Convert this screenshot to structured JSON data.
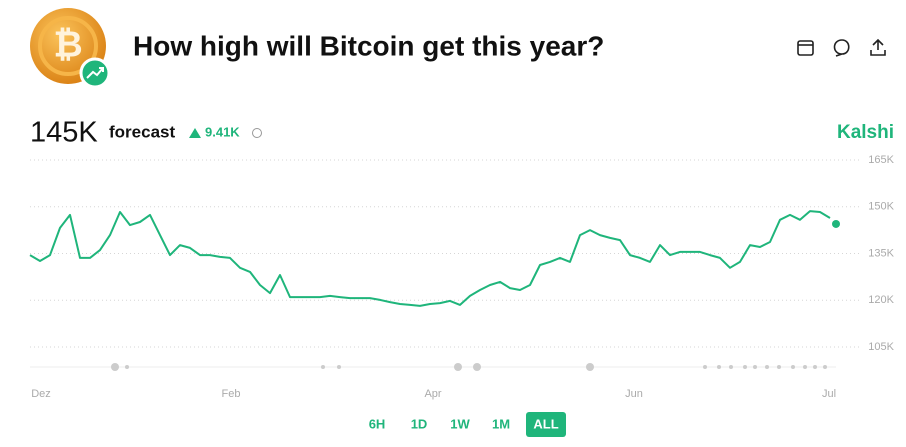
{
  "header": {
    "title": "How high will Bitcoin get this year?"
  },
  "forecast": {
    "value": "145K",
    "label": "forecast",
    "change": "9.41K",
    "source": "Kalshi"
  },
  "chart_data": {
    "type": "line",
    "series": [
      {
        "color": "#1fb57b",
        "values": [
          134500,
          132600,
          134500,
          143200,
          147400,
          133600,
          133600,
          136100,
          140900,
          148300,
          144100,
          145100,
          147400,
          140900,
          134500,
          137700,
          136800,
          134500,
          134500,
          133900,
          133600,
          130400,
          129100,
          124900,
          122300,
          128100,
          121000,
          121000,
          121000,
          121000,
          121400,
          121000,
          120700,
          120700,
          120700,
          120100,
          119400,
          118800,
          118500,
          118200,
          118800,
          119100,
          119800,
          118500,
          121400,
          123300,
          124900,
          125900,
          123900,
          123300,
          124900,
          131300,
          132300,
          133600,
          132300,
          140900,
          142500,
          140900,
          140000,
          139300,
          134500,
          133600,
          132300,
          137700,
          134500,
          135500,
          135500,
          135500,
          134500,
          133600,
          130400,
          132300,
          137700,
          137100,
          138700,
          145800,
          147400,
          145800,
          148600,
          148300,
          146400
        ]
      }
    ],
    "xlim": [
      0,
      80
    ],
    "xticks": [
      {
        "value": 1.1,
        "label": "Dez"
      },
      {
        "value": 20.1,
        "label": "Feb"
      },
      {
        "value": 40.3,
        "label": "Apr"
      },
      {
        "value": 60.4,
        "label": "Jun"
      },
      {
        "value": 79.9,
        "label": "Jul"
      }
    ],
    "ylim": [
      105000,
      165000
    ],
    "yticks": [
      {
        "value": 105000,
        "label": "105K"
      },
      {
        "value": 120000,
        "label": "120K"
      },
      {
        "value": 135000,
        "label": "135K"
      },
      {
        "value": 150000,
        "label": "150K"
      },
      {
        "value": 165000,
        "label": "165K"
      }
    ],
    "grid": true
  },
  "range_buttons": {
    "options": [
      "6H",
      "1D",
      "1W",
      "1M",
      "ALL"
    ],
    "active": 4
  }
}
